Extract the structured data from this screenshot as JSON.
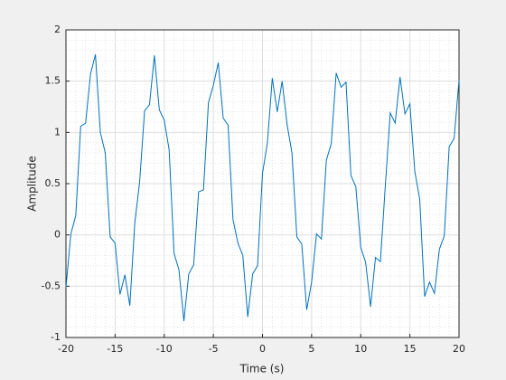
{
  "chart_data": {
    "type": "line",
    "xlabel": "Time (s)",
    "ylabel": "Amplitude",
    "x": [
      -20,
      -19.5,
      -19,
      -18.5,
      -18,
      -17.5,
      -17,
      -16.5,
      -16,
      -15.5,
      -15,
      -14.5,
      -14,
      -13.5,
      -13,
      -12.5,
      -12,
      -11.5,
      -11,
      -10.5,
      -10,
      -9.5,
      -9,
      -8.5,
      -8,
      -7.5,
      -7,
      -6.5,
      -6,
      -5.5,
      -5,
      -4.5,
      -4,
      -3.5,
      -3,
      -2.5,
      -2,
      -1.5,
      -1,
      -0.5,
      0,
      0.5,
      1,
      1.5,
      2,
      2.5,
      3,
      3.5,
      4,
      4.5,
      5,
      5.5,
      6,
      6.5,
      7,
      7.5,
      8,
      8.5,
      9,
      9.5,
      10,
      10.5,
      11,
      11.5,
      12,
      12.5,
      13,
      13.5,
      14,
      14.5,
      15,
      15.5,
      16,
      16.5,
      17,
      17.5,
      18,
      18.5,
      19,
      19.5,
      20
    ],
    "values": [
      -0.51,
      0.01,
      0.19,
      1.06,
      1.09,
      1.57,
      1.76,
      1.0,
      0.8,
      -0.02,
      -0.08,
      -0.58,
      -0.39,
      -0.69,
      0.11,
      0.52,
      1.21,
      1.27,
      1.75,
      1.22,
      1.12,
      0.83,
      -0.18,
      -0.34,
      -0.84,
      -0.38,
      -0.29,
      0.42,
      0.44,
      1.29,
      1.46,
      1.68,
      1.14,
      1.07,
      0.15,
      -0.08,
      -0.2,
      -0.8,
      -0.38,
      -0.3,
      0.6,
      0.9,
      1.53,
      1.2,
      1.5,
      1.08,
      0.8,
      -0.02,
      -0.09,
      -0.73,
      -0.46,
      0.01,
      -0.04,
      0.73,
      0.89,
      1.58,
      1.44,
      1.49,
      0.58,
      0.47,
      -0.12,
      -0.27,
      -0.7,
      -0.22,
      -0.26,
      0.48,
      1.19,
      1.09,
      1.54,
      1.18,
      1.28,
      0.62,
      0.35,
      -0.6,
      -0.46,
      -0.57,
      -0.14,
      -0.01,
      0.86,
      0.94,
      1.51
    ],
    "color": "#0072bd",
    "xlim": [
      -20,
      20
    ],
    "xticks": [
      -20,
      -15,
      -10,
      -5,
      0,
      5,
      10,
      15,
      20
    ],
    "ylim": [
      -1,
      2
    ],
    "yticks": [
      -1,
      -0.5,
      0,
      0.5,
      1,
      1.5,
      2
    ],
    "grid": true,
    "minor_grid": true
  }
}
